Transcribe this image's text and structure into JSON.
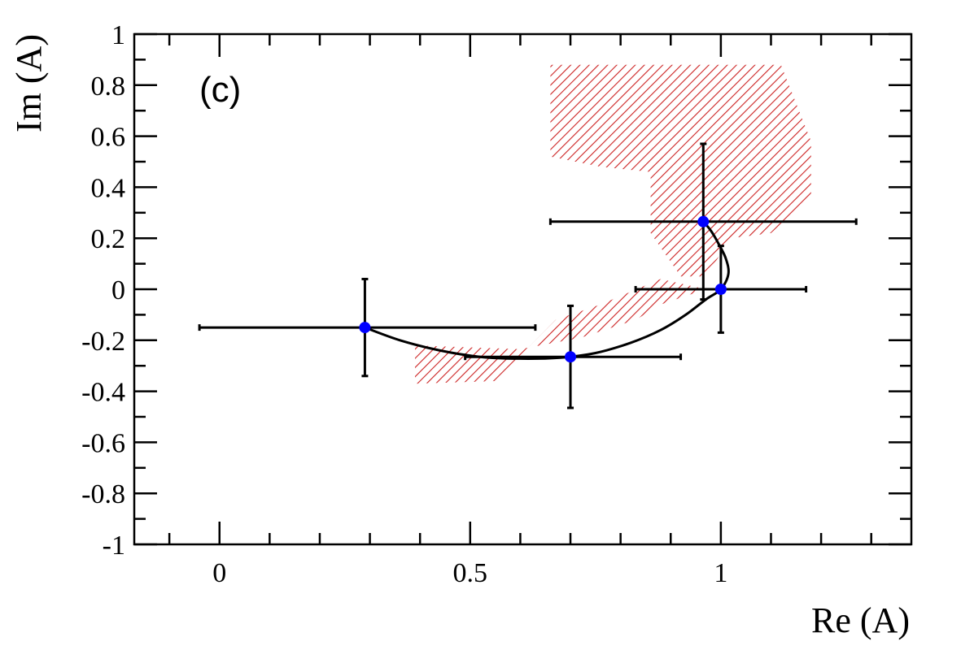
{
  "chart_data": {
    "type": "scatter",
    "panel_label": "(c)",
    "xlabel": "Re (A)",
    "ylabel": "Im (A)",
    "xlim": [
      -0.17,
      1.38
    ],
    "ylim": [
      -1,
      1
    ],
    "x_ticks": [
      {
        "value": 0,
        "label": "0"
      },
      {
        "value": 0.5,
        "label": "0.5"
      },
      {
        "value": 1,
        "label": "1"
      }
    ],
    "y_ticks": [
      {
        "value": 1,
        "label": "1"
      },
      {
        "value": 0.8,
        "label": "0.8"
      },
      {
        "value": 0.6,
        "label": "0.6"
      },
      {
        "value": 0.4,
        "label": "0.4"
      },
      {
        "value": 0.2,
        "label": "0.2"
      },
      {
        "value": 0,
        "label": "0"
      },
      {
        "value": -0.2,
        "label": "-0.2"
      },
      {
        "value": -0.4,
        "label": "-0.4"
      },
      {
        "value": -0.6,
        "label": "-0.6"
      },
      {
        "value": -0.8,
        "label": "-0.8"
      },
      {
        "value": -1,
        "label": "-1"
      }
    ],
    "points": [
      {
        "x": 0.29,
        "y": -0.15,
        "x_lo": -0.04,
        "x_hi": 0.63,
        "y_lo": -0.34,
        "y_hi": 0.04
      },
      {
        "x": 0.7,
        "y": -0.265,
        "x_lo": 0.49,
        "x_hi": 0.92,
        "y_lo": -0.465,
        "y_hi": -0.065
      },
      {
        "x": 0.965,
        "y": 0.265,
        "x_lo": 0.66,
        "x_hi": 1.27,
        "y_lo": -0.04,
        "y_hi": 0.57
      },
      {
        "x": 1.0,
        "y": 0.0,
        "x_lo": 0.83,
        "x_hi": 1.17,
        "y_lo": -0.17,
        "y_hi": 0.17
      }
    ],
    "curve": [
      [
        0.29,
        -0.15
      ],
      [
        0.36,
        -0.2
      ],
      [
        0.44,
        -0.24
      ],
      [
        0.52,
        -0.265
      ],
      [
        0.6,
        -0.272
      ],
      [
        0.68,
        -0.268
      ],
      [
        0.75,
        -0.25
      ],
      [
        0.82,
        -0.21
      ],
      [
        0.88,
        -0.16
      ],
      [
        0.93,
        -0.1
      ],
      [
        0.97,
        -0.04
      ],
      [
        1.0,
        0.0
      ],
      [
        1.015,
        0.06
      ],
      [
        1.01,
        0.12
      ],
      [
        0.995,
        0.18
      ],
      [
        0.98,
        0.23
      ],
      [
        0.965,
        0.265
      ]
    ],
    "error_bands": [
      {
        "polygon": [
          [
            0.39,
            -0.22
          ],
          [
            0.6,
            -0.235
          ],
          [
            0.72,
            -0.19
          ],
          [
            0.83,
            -0.12
          ],
          [
            0.88,
            -0.06
          ],
          [
            0.97,
            0.0
          ],
          [
            0.88,
            0.04
          ],
          [
            0.76,
            -0.06
          ],
          [
            0.67,
            -0.12
          ],
          [
            0.55,
            -0.36
          ],
          [
            0.39,
            -0.37
          ]
        ]
      },
      {
        "polygon": [
          [
            0.66,
            0.88
          ],
          [
            1.12,
            0.88
          ],
          [
            1.18,
            0.58
          ],
          [
            1.18,
            0.36
          ],
          [
            1.1,
            0.22
          ],
          [
            1.02,
            0.2
          ],
          [
            0.97,
            0.05
          ],
          [
            0.92,
            0.05
          ],
          [
            0.86,
            0.22
          ],
          [
            0.86,
            0.46
          ],
          [
            0.76,
            0.48
          ],
          [
            0.66,
            0.52
          ]
        ]
      }
    ],
    "colors": {
      "points": "#0000ff",
      "curve": "#000000",
      "band": "#cc2222",
      "frame": "#000000"
    }
  }
}
